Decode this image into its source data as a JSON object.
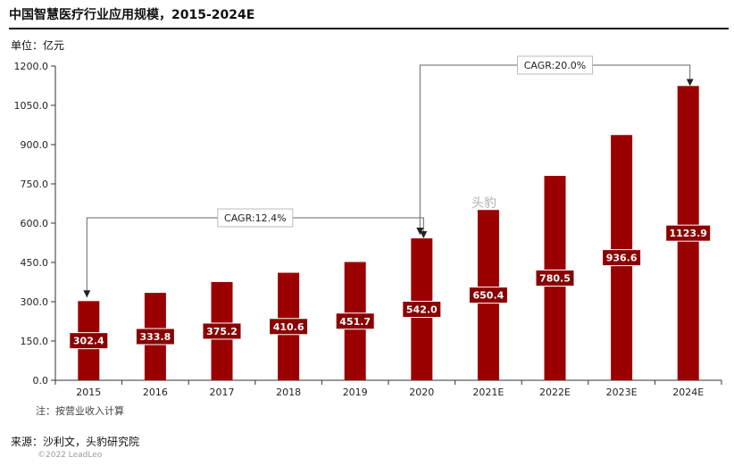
{
  "header": {
    "title": "中国智慧医疗行业应用规模，2015-2024E",
    "unit": "单位：亿元"
  },
  "footer": {
    "note": "注：按营业收入计算",
    "source": "来源：沙利文，头豹研究院",
    "copyright": "©2022 LeadLeo"
  },
  "watermark": "头豹",
  "chart_data": {
    "type": "bar",
    "title": "中国智慧医疗行业应用规模，2015-2024E",
    "xlabel": "",
    "ylabel": "",
    "categories": [
      "2015",
      "2016",
      "2017",
      "2018",
      "2019",
      "2020",
      "2021E",
      "2022E",
      "2023E",
      "2024E"
    ],
    "values": [
      302.4,
      333.8,
      375.2,
      410.6,
      451.7,
      542.0,
      650.4,
      780.5,
      936.6,
      1123.9
    ],
    "data_labels": [
      "302.4",
      "333.8",
      "375.2",
      "410.6",
      "451.7",
      "542.0",
      "650.4",
      "780.5",
      "936.6",
      "1123.9"
    ],
    "ylim": [
      0,
      1200
    ],
    "yticks": [
      0,
      150,
      300,
      450,
      600,
      750,
      900,
      1050,
      1200
    ],
    "ytick_labels": [
      "0.0",
      "150.0",
      "300.0",
      "450.0",
      "600.0",
      "750.0",
      "900.0",
      "1050.0",
      "1200.0"
    ],
    "grid": false,
    "bar_color": "#9b0000",
    "annotations": [
      {
        "text": "CAGR:12.4%",
        "from": "2015",
        "to": "2020"
      },
      {
        "text": "CAGR:20.0%",
        "from": "2020",
        "to": "2024E"
      }
    ]
  }
}
